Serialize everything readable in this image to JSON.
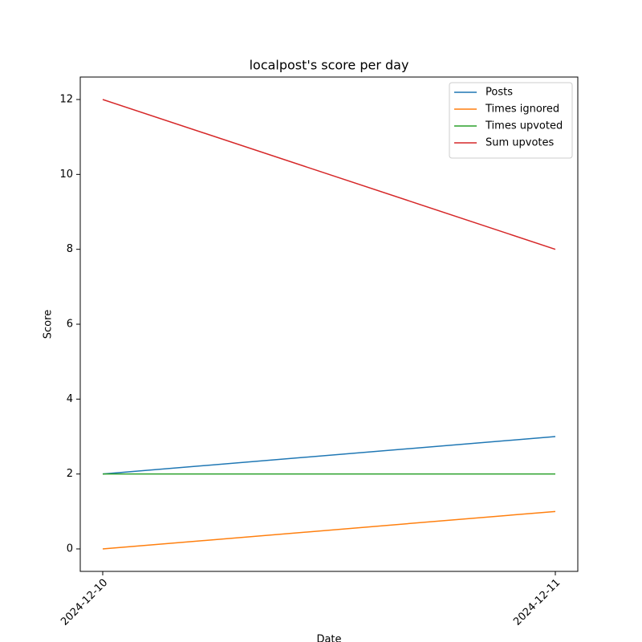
{
  "chart_data": {
    "type": "line",
    "title": "localpost's score per day",
    "x_label": "Date",
    "y_label": "Score",
    "categories": [
      "2024-12-10",
      "2024-12-11"
    ],
    "series": [
      {
        "name": "Posts",
        "color": "#1f77b4",
        "values": [
          2,
          3
        ]
      },
      {
        "name": "Times ignored",
        "color": "#ff7f0e",
        "values": [
          0,
          1
        ]
      },
      {
        "name": "Times upvoted",
        "color": "#2ca02c",
        "values": [
          2,
          2
        ]
      },
      {
        "name": "Sum upvotes",
        "color": "#d62728",
        "values": [
          12,
          8
        ]
      }
    ],
    "ylim": [
      -0.6,
      12.6
    ],
    "yticks": [
      0,
      2,
      4,
      6,
      8,
      10,
      12
    ],
    "grid": false,
    "legend": "upper right"
  }
}
